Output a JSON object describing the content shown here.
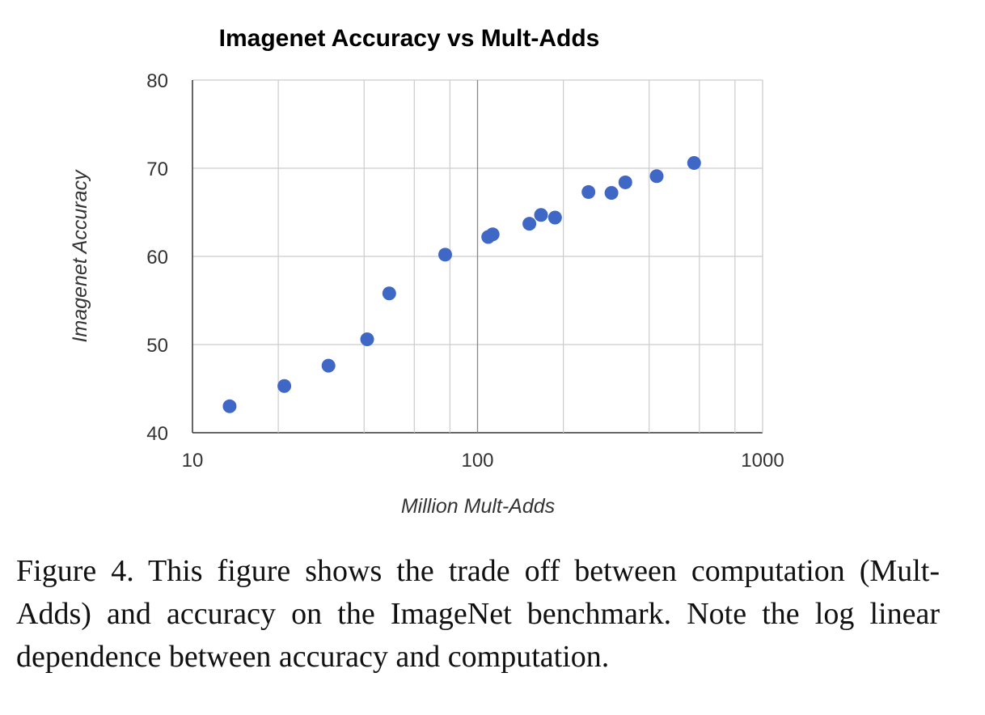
{
  "chart_data": {
    "type": "scatter",
    "title": "Imagenet Accuracy vs Mult-Adds",
    "xlabel": "Million Mult-Adds",
    "ylabel": "Imagenet Accuracy",
    "x_scale": "log",
    "xlim": [
      10,
      1000
    ],
    "ylim": [
      40,
      80
    ],
    "x_major_ticks": [
      10,
      100,
      1000
    ],
    "x_tick_labels": [
      "10",
      "100",
      "1000"
    ],
    "x_minor_gridlines": [
      20,
      40,
      60,
      80,
      200,
      400,
      600,
      800
    ],
    "y_ticks": [
      40,
      50,
      60,
      70,
      80
    ],
    "y_tick_labels": [
      "40",
      "50",
      "60",
      "70",
      "80"
    ],
    "grid": true,
    "legend": "none",
    "marker_color": "#3f67c6",
    "series": [
      {
        "points": [
          {
            "x": 13.5,
            "y": 43.0
          },
          {
            "x": 21,
            "y": 45.3
          },
          {
            "x": 30,
            "y": 47.6
          },
          {
            "x": 41,
            "y": 50.6
          },
          {
            "x": 49,
            "y": 55.8
          },
          {
            "x": 77,
            "y": 60.2
          },
          {
            "x": 109,
            "y": 62.2
          },
          {
            "x": 113,
            "y": 62.5
          },
          {
            "x": 152,
            "y": 63.7
          },
          {
            "x": 167,
            "y": 64.7
          },
          {
            "x": 187,
            "y": 64.4
          },
          {
            "x": 245,
            "y": 67.3
          },
          {
            "x": 295,
            "y": 67.2
          },
          {
            "x": 330,
            "y": 68.4
          },
          {
            "x": 425,
            "y": 69.1
          },
          {
            "x": 575,
            "y": 70.6
          }
        ]
      }
    ]
  },
  "caption": "Figure 4. This figure shows the trade off between computation (Mult-Adds) and accuracy on the ImageNet benchmark. Note the log linear dependence between accuracy and computation."
}
